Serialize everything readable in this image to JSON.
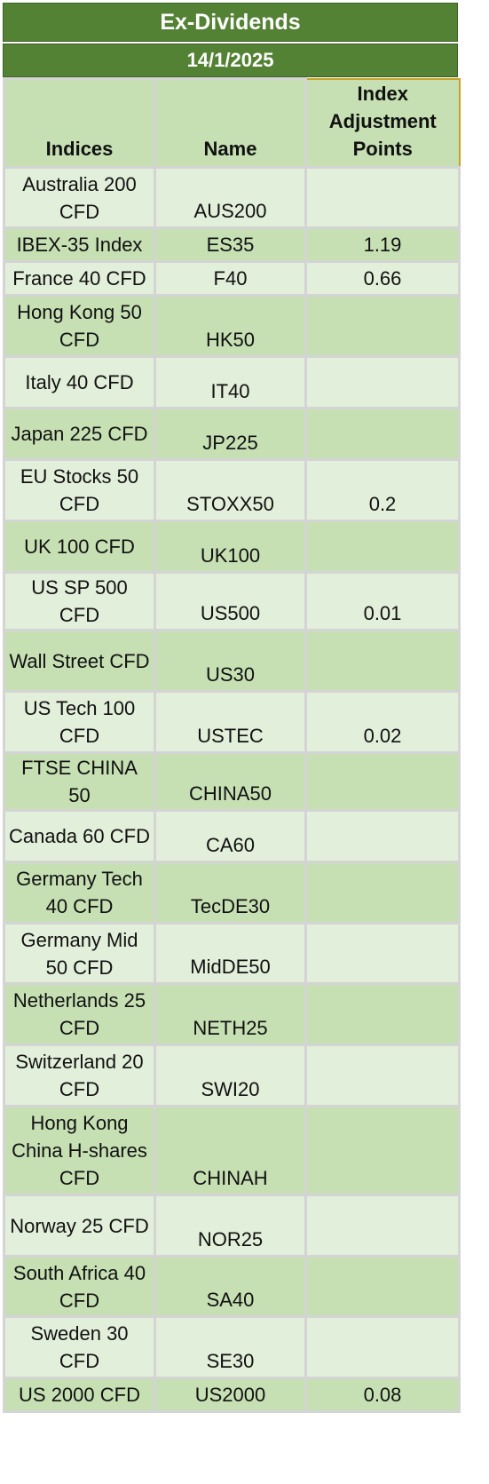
{
  "title": "Ex-Dividends",
  "date": "14/1/2025",
  "headers": {
    "indices": "Indices",
    "name": "Name",
    "points": "Index Adjustment Points"
  },
  "rows": [
    {
      "index": "Australia 200 CFD",
      "name": "AUS200",
      "points": ""
    },
    {
      "index": "IBEX-35 Index",
      "name": "ES35",
      "points": "1.19"
    },
    {
      "index": "France 40 CFD",
      "name": "F40",
      "points": "0.66"
    },
    {
      "index": "Hong Kong 50 CFD",
      "name": "HK50",
      "points": ""
    },
    {
      "index": "Italy 40 CFD",
      "name": "IT40",
      "points": ""
    },
    {
      "index": "Japan 225 CFD",
      "name": "JP225",
      "points": ""
    },
    {
      "index": "EU Stocks 50 CFD",
      "name": "STOXX50",
      "points": "0.2"
    },
    {
      "index": "UK 100 CFD",
      "name": "UK100",
      "points": ""
    },
    {
      "index": "US SP 500 CFD",
      "name": "US500",
      "points": "0.01"
    },
    {
      "index": "Wall Street CFD",
      "name": "US30",
      "points": ""
    },
    {
      "index": "US Tech 100 CFD",
      "name": "USTEC",
      "points": "0.02"
    },
    {
      "index": "FTSE CHINA 50",
      "name": "CHINA50",
      "points": ""
    },
    {
      "index": "Canada 60 CFD",
      "name": "CA60",
      "points": ""
    },
    {
      "index": "Germany Tech 40 CFD",
      "name": "TecDE30",
      "points": ""
    },
    {
      "index": "Germany Mid 50 CFD",
      "name": "MidDE50",
      "points": ""
    },
    {
      "index": "Netherlands 25 CFD",
      "name": "NETH25",
      "points": ""
    },
    {
      "index": "Switzerland 20 CFD",
      "name": "SWI20",
      "points": ""
    },
    {
      "index": "Hong Kong China H-shares CFD",
      "name": "CHINAH",
      "points": ""
    },
    {
      "index": "Norway 25 CFD",
      "name": "NOR25",
      "points": ""
    },
    {
      "index": "South Africa 40 CFD",
      "name": "SA40",
      "points": ""
    },
    {
      "index": "Sweden 30 CFD",
      "name": "SE30",
      "points": ""
    },
    {
      "index": "US 2000 CFD",
      "name": "US2000",
      "points": "0.08"
    }
  ]
}
